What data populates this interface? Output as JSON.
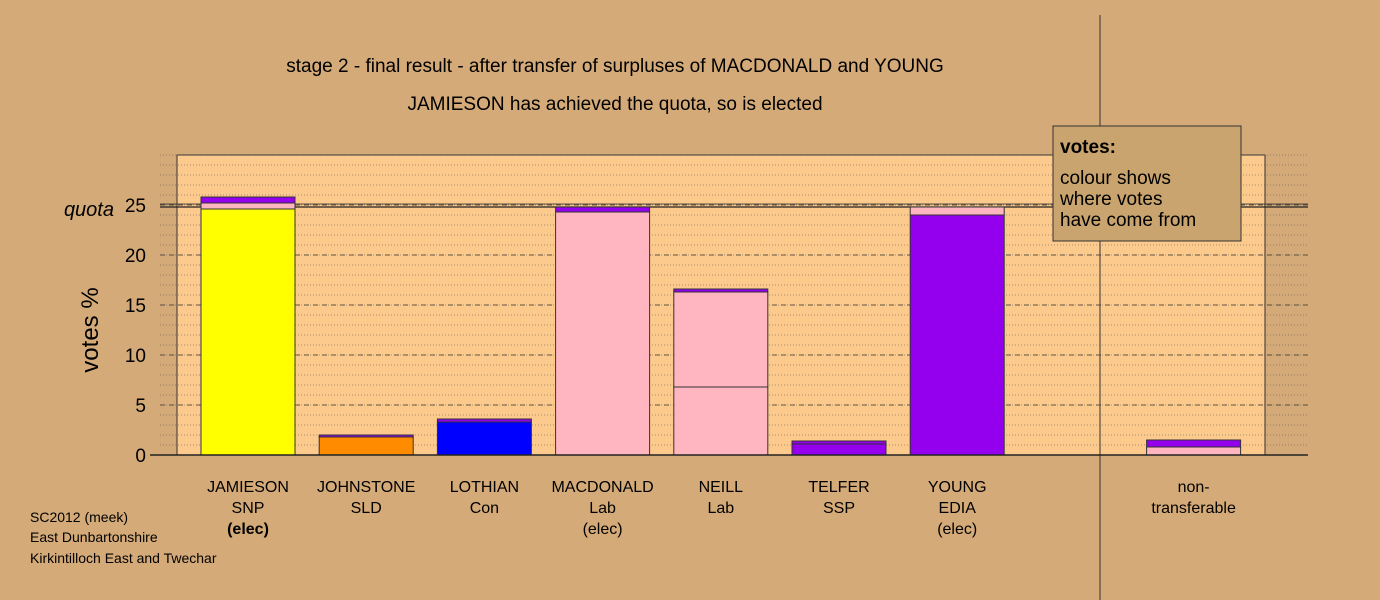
{
  "chart_data": {
    "type": "stacked_bar",
    "title": "stage 2 - final result - after transfer of surpluses of MACDONALD and YOUNG",
    "subtitle": "JAMIESON has achieved the quota, so is elected",
    "ylabel": "votes %",
    "ylim": [
      0,
      30
    ],
    "yticks": [
      0,
      5,
      10,
      15,
      20,
      25
    ],
    "minor_grid_step": 1,
    "quota": {
      "label": "quota",
      "value": 24.8
    },
    "legend": {
      "title": "votes:",
      "lines": [
        "colour shows",
        "where votes",
        "have come from"
      ]
    },
    "bars": [
      {
        "labels": [
          "JAMIESON",
          "SNP",
          "(elec)"
        ],
        "bold_last": true,
        "segments": [
          {
            "value": 24.6,
            "color": "#ffff00"
          },
          {
            "value": 0.6,
            "color": "#ffb6c1"
          },
          {
            "value": 0.6,
            "color": "#9400ee"
          }
        ]
      },
      {
        "labels": [
          "JOHNSTONE",
          "SLD"
        ],
        "segments": [
          {
            "value": 1.8,
            "color": "#ff8c00"
          },
          {
            "value": 0.2,
            "color": "#9400ee"
          }
        ]
      },
      {
        "labels": [
          "LOTHIAN",
          "Con"
        ],
        "segments": [
          {
            "value": 3.3,
            "color": "#0000ff"
          },
          {
            "value": 0.3,
            "color": "#9400ee"
          }
        ]
      },
      {
        "labels": [
          "MACDONALD",
          "Lab",
          "(elec)"
        ],
        "segments": [
          {
            "value": 24.3,
            "color": "#ffb6c1"
          },
          {
            "value": 0.5,
            "color": "#9400ee"
          }
        ]
      },
      {
        "labels": [
          "NEILL",
          "Lab"
        ],
        "segments": [
          {
            "value": 6.8,
            "color": "#ffb6c1"
          },
          {
            "value": 9.5,
            "color": "#ffb6c1"
          },
          {
            "value": 0.3,
            "color": "#9400ee"
          }
        ]
      },
      {
        "labels": [
          "TELFER",
          "SSP"
        ],
        "segments": [
          {
            "value": 1.1,
            "color": "#9400ee"
          },
          {
            "value": 0.3,
            "color": "#9400ee"
          }
        ]
      },
      {
        "labels": [
          "YOUNG",
          "EDIA",
          "(elec)"
        ],
        "segments": [
          {
            "value": 24.0,
            "color": "#9400ee"
          },
          {
            "value": 0.8,
            "color": "#ffb6c1"
          }
        ]
      },
      {
        "labels": [
          "non-",
          "transferable"
        ],
        "separate": true,
        "segments": [
          {
            "value": 0.8,
            "color": "#ffb6c1"
          },
          {
            "value": 0.7,
            "color": "#9400ee"
          }
        ]
      }
    ]
  },
  "footer": [
    "SC2012 (meek)",
    "East Dunbartonshire",
    "Kirkintilloch East and Twechar"
  ]
}
